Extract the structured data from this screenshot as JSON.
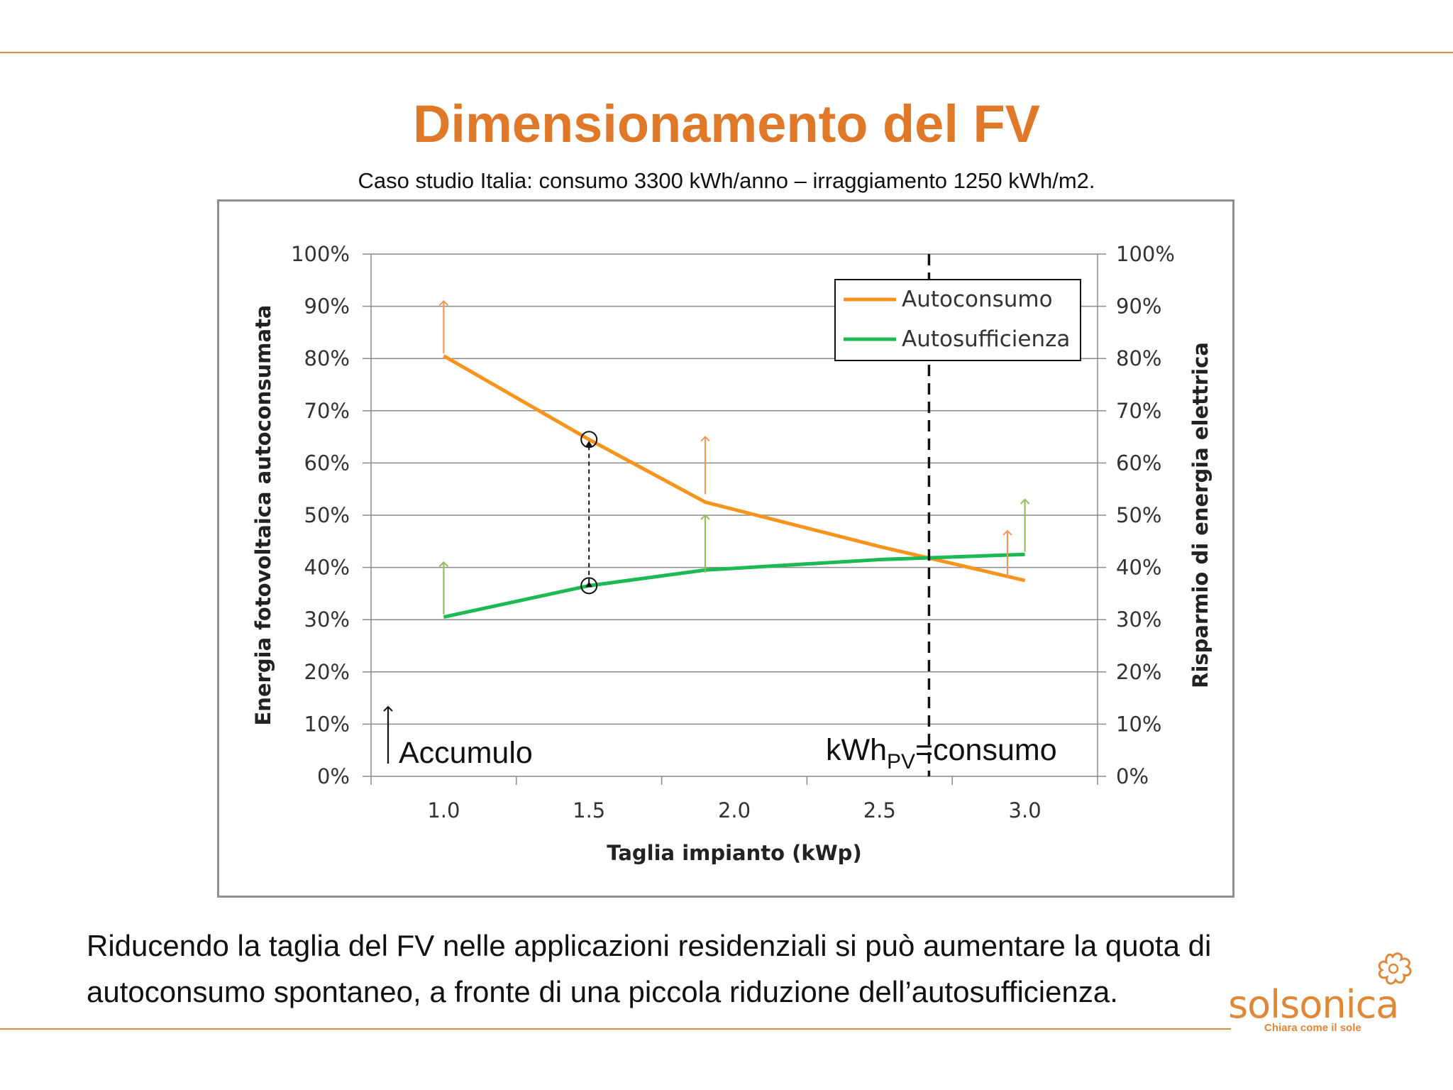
{
  "slide": {
    "title": "Dimensionamento del FV",
    "subtitle": "Caso studio Italia: consumo 3300 kWh/anno – irraggiamento 1250 kWh/m2.",
    "body_text": "Riducendo la taglia del FV nelle applicazioni residenziali si può aumentare la quota di autoconsumo spontaneo, a fronte di una piccola riduzione dell’autosufficienza.",
    "logo": {
      "name": "solsonica",
      "tagline": "Chiara come il sole"
    },
    "accent_color": "#e0782a"
  },
  "chart_data": {
    "type": "line",
    "xlabel": "Taglia impianto (kWp)",
    "ylabel": "Energia fotovoltaica autoconsumata",
    "ylabel_right": "Risparmio di energia elettrica",
    "xlim": [
      0.75,
      3.25
    ],
    "ylim": [
      0,
      100
    ],
    "x_ticks": [
      "1.0",
      "1.5",
      "2.0",
      "2.5",
      "3.0"
    ],
    "y_ticks": [
      "0%",
      "10%",
      "20%",
      "30%",
      "40%",
      "50%",
      "60%",
      "70%",
      "80%",
      "90%",
      "100%"
    ],
    "grid": true,
    "legend_position": "top-right",
    "series": [
      {
        "name": "Autoconsumo",
        "color": "#f7941d",
        "x": [
          1.0,
          1.5,
          1.9,
          2.5,
          3.0
        ],
        "y": [
          80.5,
          64.5,
          52.5,
          44,
          37.5
        ]
      },
      {
        "name": "Autosufficienza",
        "color": "#1db954",
        "x": [
          1.0,
          1.5,
          1.9,
          2.5,
          3.0
        ],
        "y": [
          30.5,
          36.5,
          39.5,
          41.5,
          42.5
        ]
      }
    ],
    "arrows_autoconsumo": {
      "color": "#f0985a",
      "points": [
        {
          "x": 1.0,
          "from": 81,
          "to": 91
        },
        {
          "x": 1.9,
          "from": 54,
          "to": 65
        },
        {
          "x": 2.94,
          "from": 38,
          "to": 47
        }
      ]
    },
    "arrows_autosufficienza": {
      "color": "#96bc5c",
      "points": [
        {
          "x": 1.0,
          "from": 31,
          "to": 41
        },
        {
          "x": 1.9,
          "from": 39,
          "to": 50
        },
        {
          "x": 3.0,
          "from": 43,
          "to": 53
        }
      ]
    },
    "gap_marker": {
      "x": 1.5,
      "top": 64.5,
      "bottom": 36.5
    },
    "vline_x": 2.67,
    "annotations": {
      "accumulo": "Accumulo",
      "kwh_main": "kWh",
      "kwh_sub": "PV",
      "kwh_rest": "=consumo"
    }
  }
}
